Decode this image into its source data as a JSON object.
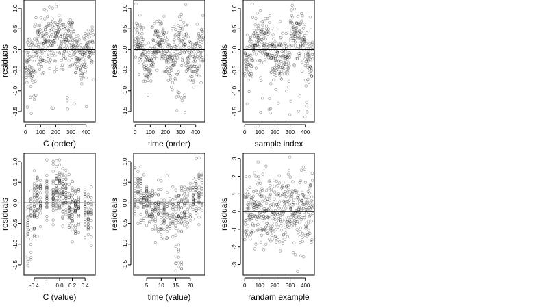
{
  "chart_data": [
    {
      "type": "scatter",
      "xlabel": "C (order)",
      "ylabel": "residuals",
      "xlim": [
        -10,
        460
      ],
      "ylim": [
        -1.75,
        1.2
      ],
      "xticks": [
        0,
        100,
        200,
        300,
        400
      ],
      "yticks": [
        1.0,
        0.5,
        0.0,
        -0.5,
        -1.0,
        -1.5
      ],
      "ytick_labels": [
        "1.0",
        "0.5",
        "0.0",
        "-0.5",
        "-1.0",
        "-1.5"
      ],
      "hline": 0.0,
      "pattern": "c_order",
      "points_note": "~450 residual points, index 1..450"
    },
    {
      "type": "scatter",
      "xlabel": "time (order)",
      "ylabel": "residuals",
      "xlim": [
        -10,
        460
      ],
      "ylim": [
        -1.75,
        1.2
      ],
      "xticks": [
        0,
        100,
        200,
        300,
        400
      ],
      "yticks": [
        1.0,
        0.5,
        0.0,
        -0.5,
        -1.0,
        -1.5
      ],
      "ytick_labels": [
        "1.0",
        "0.5",
        "0.0",
        "-0.5",
        "-1.0",
        "-1.5"
      ],
      "hline": 0.0,
      "pattern": "time_order"
    },
    {
      "type": "scatter",
      "xlabel": "sample index",
      "ylabel": "residuals",
      "xlim": [
        -10,
        460
      ],
      "ylim": [
        -1.75,
        1.2
      ],
      "xticks": [
        0,
        100,
        200,
        300,
        400
      ],
      "yticks": [
        1.0,
        0.5,
        0.0,
        -0.5,
        -1.0,
        -1.5
      ],
      "ytick_labels": [
        "1.0",
        "0.5",
        "0.0",
        "-0.5",
        "-1.0",
        "-1.5"
      ],
      "hline": 0.0,
      "pattern": "sample_index"
    },
    {
      "type": "scatter",
      "xlabel": "C (value)",
      "ylabel": "residuals",
      "xlim": [
        -0.56,
        0.56
      ],
      "ylim": [
        -1.75,
        1.2
      ],
      "xticks": [
        -0.4,
        -0.2,
        0.0,
        0.2,
        0.4
      ],
      "xtick_labels": [
        "-0.4",
        "",
        "0.0",
        "0.2",
        "0.4"
      ],
      "yticks": [
        1.0,
        0.5,
        0.0,
        -0.5,
        -1.0,
        -1.5
      ],
      "ytick_labels": [
        "1.0",
        "0.5",
        "0.0",
        "-0.5",
        "-1.0",
        "-1.5"
      ],
      "hline": 0.0,
      "pattern": "c_value"
    },
    {
      "type": "scatter",
      "xlabel": "time (value)",
      "ylabel": "residuals",
      "xlim": [
        0.5,
        25
      ],
      "ylim": [
        -1.75,
        1.2
      ],
      "xticks": [
        5,
        10,
        15,
        20
      ],
      "yticks": [
        1.0,
        0.5,
        0.0,
        -0.5,
        -1.0,
        -1.5
      ],
      "ytick_labels": [
        "1.0",
        "0.5",
        "0.0",
        "-0.5",
        "-1.0",
        "-1.5"
      ],
      "hline": 0.0,
      "pattern": "time_value"
    },
    {
      "type": "scatter",
      "xlabel": "randam example",
      "ylabel": "residuals",
      "xlim": [
        -10,
        460
      ],
      "ylim": [
        -3.6,
        3.3
      ],
      "xticks": [
        0,
        100,
        200,
        300,
        400
      ],
      "yticks": [
        3,
        2,
        1,
        0,
        -1,
        -2,
        -3
      ],
      "ytick_labels": [
        "3",
        "2",
        "1",
        "0",
        "-1",
        "-2",
        "-3"
      ],
      "hline": 0.0,
      "pattern": "random"
    }
  ]
}
